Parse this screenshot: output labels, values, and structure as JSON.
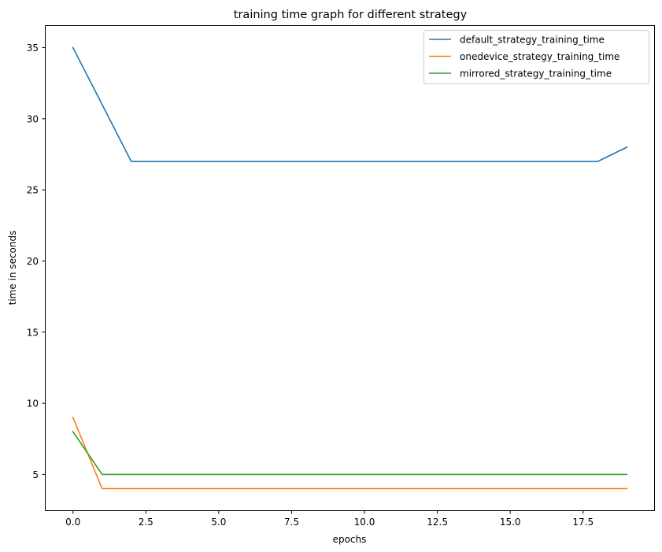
{
  "chart_data": {
    "type": "line",
    "title": "training time graph for different strategy",
    "xlabel": "epochs",
    "ylabel": "time in seconds",
    "xlim": [
      -0.95,
      19.95
    ],
    "ylim": [
      2.45,
      36.55
    ],
    "x_ticks": [
      0.0,
      2.5,
      5.0,
      7.5,
      10.0,
      12.5,
      15.0,
      17.5
    ],
    "x_tick_labels": [
      "0.0",
      "2.5",
      "5.0",
      "7.5",
      "10.0",
      "12.5",
      "15.0",
      "17.5"
    ],
    "y_ticks": [
      5,
      10,
      15,
      20,
      25,
      30,
      35
    ],
    "y_tick_labels": [
      "5",
      "10",
      "15",
      "20",
      "25",
      "30",
      "35"
    ],
    "grid": false,
    "legend_position": "top-right",
    "x": [
      0,
      1,
      2,
      3,
      4,
      5,
      6,
      7,
      8,
      9,
      10,
      11,
      12,
      13,
      14,
      15,
      16,
      17,
      18,
      19
    ],
    "series": [
      {
        "name": "default_strategy_training_time",
        "color": "#1f77b4",
        "values": [
          35,
          31,
          27,
          27,
          27,
          27,
          27,
          27,
          27,
          27,
          27,
          27,
          27,
          27,
          27,
          27,
          27,
          27,
          27,
          28
        ]
      },
      {
        "name": "onedevice_strategy_training_time",
        "color": "#ff7f0e",
        "values": [
          9,
          4,
          4,
          4,
          4,
          4,
          4,
          4,
          4,
          4,
          4,
          4,
          4,
          4,
          4,
          4,
          4,
          4,
          4,
          4
        ]
      },
      {
        "name": "mirrored_strategy_training_time",
        "color": "#2ca02c",
        "values": [
          8,
          5,
          5,
          5,
          5,
          5,
          5,
          5,
          5,
          5,
          5,
          5,
          5,
          5,
          5,
          5,
          5,
          5,
          5,
          5
        ]
      }
    ]
  }
}
